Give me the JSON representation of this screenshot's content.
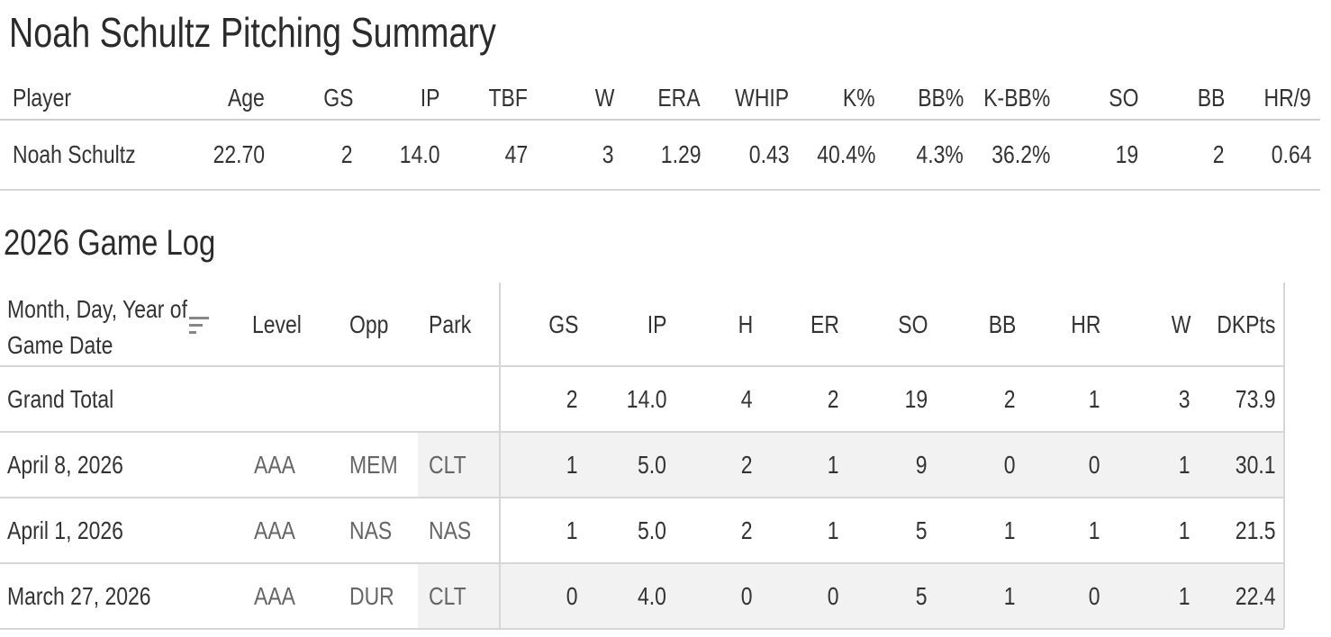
{
  "title": "Noah Schultz Pitching Summary",
  "summary": {
    "headers": [
      "Player",
      "Age",
      "GS",
      "IP",
      "TBF",
      "W",
      "ERA",
      "WHIP",
      "K%",
      "BB%",
      "K-BB%",
      "SO",
      "BB",
      "HR/9"
    ],
    "row": [
      "Noah Schultz",
      "22.70",
      "2",
      "14.0",
      "47",
      "3",
      "1.29",
      "0.43",
      "40.4%",
      "4.3%",
      "36.2%",
      "19",
      "2",
      "0.64"
    ]
  },
  "game_log": {
    "title": "2026 Game Log",
    "date_header_line1": "Month, Day, Year of",
    "date_header_line2": "Game Date",
    "headers": [
      "Level",
      "Opp",
      "Park",
      "GS",
      "IP",
      "H",
      "ER",
      "SO",
      "BB",
      "HR",
      "W",
      "DKPts"
    ],
    "total": [
      "Grand Total",
      "",
      "",
      "",
      "2",
      "14.0",
      "4",
      "2",
      "19",
      "2",
      "1",
      "3",
      "73.9"
    ],
    "rows": [
      [
        "April 8, 2026",
        "AAA",
        "MEM",
        "CLT",
        "1",
        "5.0",
        "2",
        "1",
        "9",
        "0",
        "0",
        "1",
        "30.1"
      ],
      [
        "April 1, 2026",
        "AAA",
        "NAS",
        "NAS",
        "1",
        "5.0",
        "2",
        "1",
        "5",
        "1",
        "1",
        "1",
        "21.5"
      ],
      [
        "March 27, 2026",
        "AAA",
        "DUR",
        "CLT",
        "0",
        "4.0",
        "0",
        "0",
        "5",
        "1",
        "0",
        "1",
        "22.4"
      ]
    ],
    "sort_icon": "sort-descending-icon"
  }
}
